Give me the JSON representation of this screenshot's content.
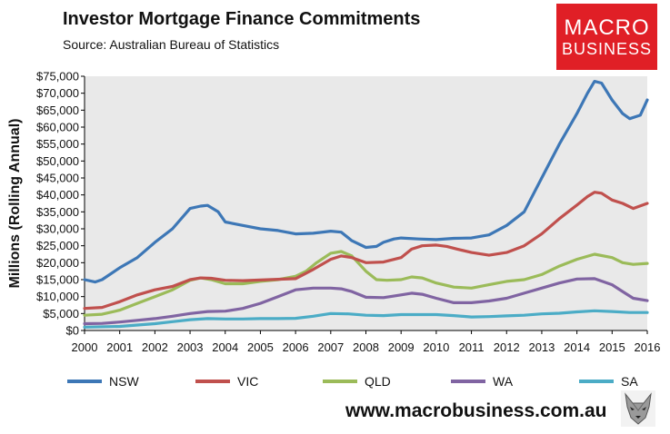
{
  "header": {
    "title": "Investor Mortgage Finance Commitments",
    "subtitle": "Source: Australian Bureau of Statistics"
  },
  "logo": {
    "line1": "MACRO",
    "line2": "BUSINESS",
    "bg_color": "#e01f26"
  },
  "footer": {
    "url": "www.macrobusiness.com.au",
    "wolf_icon": "wolf-head-icon"
  },
  "chart_data": {
    "type": "line",
    "title": "Investor Mortgage Finance Commitments",
    "ylabel": "Millions (Rolling Annual)",
    "xlabel": "",
    "ylim": [
      0,
      75000
    ],
    "xlim": [
      2000,
      2016
    ],
    "y_ticks": [
      "$0",
      "$5,000",
      "$10,000",
      "$15,000",
      "$20,000",
      "$25,000",
      "$30,000",
      "$35,000",
      "$40,000",
      "$45,000",
      "$50,000",
      "$55,000",
      "$60,000",
      "$65,000",
      "$70,000",
      "$75,000"
    ],
    "x_ticks": [
      "2000",
      "2001",
      "2002",
      "2003",
      "2004",
      "2005",
      "2006",
      "2007",
      "2008",
      "2009",
      "2010",
      "2011",
      "2012",
      "2013",
      "2014",
      "2015",
      "2016"
    ],
    "grid": false,
    "plot_background": "#e9e9e9",
    "legend_position": "bottom",
    "series": [
      {
        "name": "NSW",
        "color": "#3d77b6",
        "x": [
          2000,
          2000.3,
          2000.5,
          2001,
          2001.5,
          2002,
          2002.5,
          2003,
          2003.3,
          2003.5,
          2003.8,
          2004,
          2004.5,
          2005,
          2005.5,
          2006,
          2006.5,
          2007,
          2007.3,
          2007.6,
          2008,
          2008.3,
          2008.5,
          2008.8,
          2009,
          2009.5,
          2010,
          2010.5,
          2011,
          2011.5,
          2012,
          2012.5,
          2013,
          2013.5,
          2014,
          2014.3,
          2014.5,
          2014.7,
          2015,
          2015.3,
          2015.5,
          2015.8,
          2016
        ],
        "y": [
          15000,
          14300,
          15000,
          18500,
          21500,
          26000,
          30000,
          36000,
          36700,
          36900,
          35000,
          32000,
          31000,
          30000,
          29500,
          28500,
          28700,
          29300,
          29000,
          26500,
          24500,
          24800,
          26000,
          27000,
          27300,
          27000,
          26800,
          27200,
          27300,
          28200,
          31000,
          35000,
          45000,
          55000,
          64000,
          70000,
          73500,
          73000,
          68000,
          64000,
          62500,
          63500,
          68000
        ]
      },
      {
        "name": "VIC",
        "color": "#c0504d",
        "x": [
          2000,
          2000.5,
          2001,
          2001.5,
          2002,
          2002.5,
          2003,
          2003.3,
          2003.6,
          2004,
          2004.5,
          2005,
          2005.5,
          2006,
          2006.5,
          2007,
          2007.3,
          2007.6,
          2008,
          2008.5,
          2009,
          2009.3,
          2009.6,
          2010,
          2010.3,
          2010.6,
          2011,
          2011.5,
          2012,
          2012.5,
          2013,
          2013.5,
          2014,
          2014.3,
          2014.5,
          2014.7,
          2015,
          2015.3,
          2015.6,
          2016
        ],
        "y": [
          6500,
          6800,
          8500,
          10500,
          12000,
          13000,
          15000,
          15500,
          15400,
          14800,
          14700,
          14900,
          15100,
          15300,
          18000,
          21000,
          22000,
          21500,
          20000,
          20200,
          21500,
          24000,
          25000,
          25200,
          24800,
          24000,
          23000,
          22200,
          23000,
          25000,
          28500,
          33000,
          37000,
          39500,
          40800,
          40500,
          38500,
          37500,
          36000,
          37500
        ]
      },
      {
        "name": "QLD",
        "color": "#9bbb59",
        "x": [
          2000,
          2000.5,
          2001,
          2001.5,
          2002,
          2002.5,
          2003,
          2003.3,
          2003.6,
          2004,
          2004.5,
          2005,
          2005.5,
          2006,
          2006.3,
          2006.6,
          2007,
          2007.3,
          2007.6,
          2008,
          2008.3,
          2008.6,
          2009,
          2009.3,
          2009.6,
          2010,
          2010.5,
          2011,
          2011.5,
          2012,
          2012.5,
          2013,
          2013.5,
          2014,
          2014.5,
          2015,
          2015.3,
          2015.6,
          2016
        ],
        "y": [
          4500,
          4800,
          6000,
          8000,
          10000,
          12000,
          14800,
          15500,
          15000,
          13800,
          13800,
          14500,
          15000,
          16000,
          17500,
          20000,
          22800,
          23300,
          22000,
          17500,
          15000,
          14800,
          15000,
          15800,
          15500,
          14000,
          12800,
          12500,
          13500,
          14500,
          15000,
          16500,
          19000,
          21000,
          22500,
          21500,
          20000,
          19500,
          19800
        ]
      },
      {
        "name": "WA",
        "color": "#8064a2",
        "x": [
          2000,
          2000.5,
          2001,
          2001.5,
          2002,
          2002.5,
          2003,
          2003.5,
          2004,
          2004.5,
          2005,
          2005.5,
          2006,
          2006.5,
          2007,
          2007.3,
          2007.6,
          2008,
          2008.5,
          2009,
          2009.3,
          2009.6,
          2010,
          2010.5,
          2011,
          2011.5,
          2012,
          2012.5,
          2013,
          2013.5,
          2014,
          2014.5,
          2015,
          2015.3,
          2015.6,
          2016
        ],
        "y": [
          2000,
          2100,
          2500,
          3000,
          3500,
          4200,
          5000,
          5600,
          5700,
          6500,
          8000,
          10000,
          12000,
          12500,
          12500,
          12300,
          11500,
          9800,
          9700,
          10500,
          11000,
          10700,
          9500,
          8200,
          8200,
          8700,
          9500,
          11000,
          12500,
          14000,
          15200,
          15300,
          13500,
          11500,
          9500,
          8800
        ]
      },
      {
        "name": "SA",
        "color": "#4bacc6",
        "x": [
          2000,
          2001,
          2002,
          2002.5,
          2003,
          2003.5,
          2004,
          2004.5,
          2005,
          2005.5,
          2006,
          2006.5,
          2007,
          2007.5,
          2008,
          2008.5,
          2009,
          2009.5,
          2010,
          2010.5,
          2011,
          2011.5,
          2012,
          2012.5,
          2013,
          2013.5,
          2014,
          2014.5,
          2015,
          2015.5,
          2016
        ],
        "y": [
          1000,
          1200,
          2000,
          2600,
          3200,
          3500,
          3400,
          3400,
          3500,
          3500,
          3600,
          4200,
          5000,
          4900,
          4500,
          4400,
          4700,
          4700,
          4700,
          4400,
          4000,
          4100,
          4300,
          4500,
          4900,
          5100,
          5500,
          5800,
          5600,
          5300,
          5300
        ]
      }
    ]
  }
}
